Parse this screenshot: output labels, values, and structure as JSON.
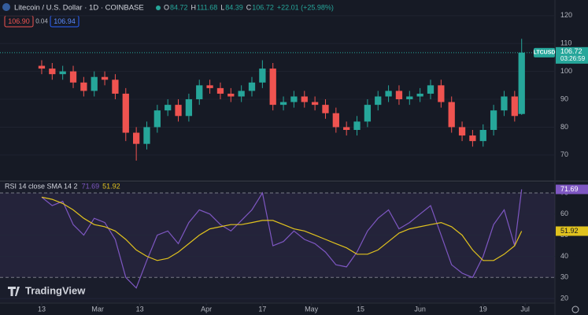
{
  "chart_data": [
    {
      "type": "candlestick",
      "title": "Litecoin / U.S. Dollar · 1D · COINBASE",
      "ohlc": [
        {
          "label": "O",
          "value": "84.72"
        },
        {
          "label": "H",
          "value": "111.68"
        },
        {
          "label": "L",
          "value": "84.39"
        },
        {
          "label": "C",
          "value": "106.72"
        }
      ],
      "change": "+22.01 (+25.98%)",
      "sell": "106.90",
      "spread": "0.04",
      "buy": "106.94",
      "symbol": "LTCUSD",
      "last_price": 106.72,
      "countdown": "03:26:59",
      "up_color": "#26a69a",
      "down_color": "#ef5350",
      "x": [
        0,
        3,
        6,
        9,
        12,
        15,
        18,
        21,
        24,
        27,
        30,
        33,
        36,
        39,
        42,
        45,
        48,
        51,
        54,
        57,
        60,
        63,
        66,
        69,
        72,
        75,
        78,
        81,
        84,
        87,
        90,
        93,
        96,
        99,
        102,
        105,
        108,
        111,
        114,
        117,
        120,
        123,
        126,
        129,
        132,
        135,
        137
      ],
      "open": [
        102,
        101,
        99,
        100,
        96,
        93,
        98,
        97,
        92,
        78,
        74,
        80,
        86,
        88,
        84,
        90,
        95,
        94,
        92,
        91,
        93,
        96,
        101,
        88,
        89,
        91,
        89,
        88,
        85,
        80,
        79,
        82,
        88,
        91,
        93,
        90,
        91,
        92,
        95,
        89,
        80,
        77,
        75,
        79,
        86,
        91,
        84.72
      ],
      "high": [
        104,
        103,
        102,
        102,
        98,
        100,
        100,
        99,
        94,
        80,
        82,
        88,
        90,
        90,
        92,
        97,
        97,
        96,
        94,
        95,
        98,
        104,
        103,
        91,
        93,
        93,
        91,
        90,
        87,
        82,
        84,
        90,
        93,
        95,
        95,
        93,
        94,
        97,
        97,
        91,
        82,
        79,
        81,
        88,
        93,
        93,
        111.68
      ],
      "low": [
        99,
        97,
        97,
        94,
        91,
        91,
        95,
        90,
        75,
        68,
        72,
        78,
        84,
        82,
        82,
        88,
        92,
        90,
        89,
        89,
        91,
        94,
        86,
        86,
        87,
        87,
        86,
        83,
        78,
        77,
        77,
        80,
        86,
        89,
        88,
        88,
        89,
        90,
        87,
        78,
        75,
        73,
        73,
        77,
        84,
        82,
        84.39
      ],
      "close": [
        101,
        99,
        100,
        96,
        93,
        98,
        97,
        92,
        78,
        74,
        80,
        86,
        88,
        84,
        90,
        95,
        94,
        92,
        91,
        93,
        96,
        101,
        88,
        89,
        91,
        89,
        88,
        85,
        80,
        79,
        82,
        88,
        91,
        93,
        90,
        91,
        92,
        95,
        89,
        80,
        77,
        75,
        79,
        86,
        91,
        84,
        106.72
      ],
      "xlim": [
        -11.9,
        146.5
      ],
      "ylim": [
        61.2,
        125.6
      ],
      "yticks": [
        120,
        110,
        100,
        90,
        80,
        70
      ]
    },
    {
      "type": "line",
      "title": "RSI 14 close SMA 14 2",
      "x": [
        0,
        3,
        6,
        9,
        12,
        15,
        18,
        21,
        24,
        27,
        30,
        33,
        36,
        39,
        42,
        45,
        48,
        51,
        54,
        57,
        60,
        63,
        66,
        69,
        72,
        75,
        78,
        81,
        84,
        87,
        90,
        93,
        96,
        99,
        102,
        105,
        108,
        111,
        114,
        117,
        120,
        123,
        126,
        129,
        132,
        135,
        137
      ],
      "series": [
        {
          "color": "#7e57c2",
          "values": [
            68,
            64,
            66,
            55,
            50,
            58,
            56,
            48,
            30,
            25,
            38,
            50,
            52,
            46,
            56,
            62,
            60,
            55,
            52,
            57,
            62,
            70,
            45,
            47,
            52,
            48,
            46,
            42,
            36,
            35,
            42,
            52,
            58,
            62,
            53,
            56,
            60,
            64,
            50,
            36,
            32,
            30,
            40,
            55,
            62,
            45,
            71.69
          ]
        },
        {
          "color": "#e0c21e",
          "values": [
            68,
            67,
            65,
            62,
            58,
            55,
            54,
            52,
            48,
            43,
            40,
            38,
            39,
            42,
            46,
            50,
            53,
            54,
            55,
            55,
            56,
            57,
            57,
            55,
            53,
            52,
            50,
            48,
            46,
            44,
            41,
            41,
            43,
            47,
            51,
            53,
            54,
            55,
            56,
            54,
            50,
            43,
            38,
            38,
            41,
            45,
            51.92
          ]
        }
      ],
      "xlim": [
        -11.9,
        146.5
      ],
      "ylim": [
        17.8,
        74.85
      ],
      "yticks": [
        70,
        60,
        50,
        40,
        30,
        20
      ],
      "xticks": [
        {
          "value": 0,
          "label": "13"
        },
        {
          "value": 16,
          "label": "Mar"
        },
        {
          "value": 28,
          "label": "13"
        },
        {
          "value": 47,
          "label": "Apr"
        },
        {
          "value": 63,
          "label": "17"
        },
        {
          "value": 77,
          "label": "May"
        },
        {
          "value": 91,
          "label": "15"
        },
        {
          "value": 108,
          "label": "Jun"
        },
        {
          "value": 126,
          "label": "19"
        },
        {
          "value": 138,
          "label": "Jul"
        }
      ]
    }
  ],
  "brand": "TradingView"
}
